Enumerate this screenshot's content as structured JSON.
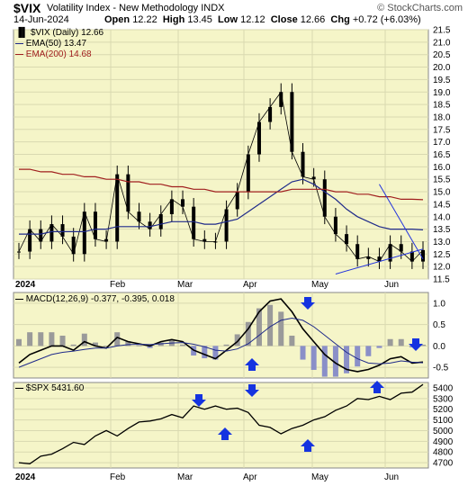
{
  "header": {
    "symbol": "$VIX",
    "name": "Volatility Index - New Methodology  INDX",
    "watermark": "© StockCharts.com",
    "date": "14-Jun-2024",
    "open_label": "Open",
    "open": "12.22",
    "high_label": "High",
    "high": "13.45",
    "low_label": "Low",
    "low": "12.12",
    "close_label": "Close",
    "close": "12.66",
    "chg_label": "Chg",
    "chg": "+0.72 (+6.03%)"
  },
  "colors": {
    "panel_bg": "#f5f5c8",
    "grid": "#d9d9b0",
    "price": "#000000",
    "ema50": "#1f2a8a",
    "ema200": "#a01e1e",
    "histogram": "#9a9a9a",
    "histogram_blue": "#8a8fc8",
    "arrow": "#1533e0",
    "trendline": "#2233dd"
  },
  "main_panel": {
    "legend": {
      "price": "$VIX (Daily) 12.66",
      "ema50": "EMA(50) 13.47",
      "ema200": "EMA(200) 14.68"
    },
    "year_label": "2024"
  },
  "macd_panel": {
    "legend_prefix": "MACD(12,26,9)",
    "legend_values": "-0.377, -0.395, 0.018"
  },
  "spx_panel": {
    "legend": "$SPX 5431.60"
  },
  "bottom_axis": {
    "year_label": "2024",
    "months": [
      "Feb",
      "Mar",
      "Apr",
      "May",
      "Jun"
    ]
  },
  "top_axis_months": [
    "Feb",
    "Mar",
    "Apr",
    "May",
    "Jun"
  ],
  "chart_data": [
    {
      "type": "line",
      "title": "$VIX (Daily) 12.66",
      "ylim": [
        11.5,
        21.5
      ],
      "y_ticks": [
        "21.5",
        "21.0",
        "20.5",
        "20.0",
        "19.5",
        "19.0",
        "18.5",
        "18.0",
        "17.5",
        "17.0",
        "16.5",
        "16.0",
        "15.5",
        "15.0",
        "14.5",
        "14.0",
        "13.5",
        "13.0",
        "12.5",
        "12.0",
        "11.5"
      ],
      "x": [
        "2024-01-02",
        "2024-01-05",
        "2024-01-10",
        "2024-01-15",
        "2024-01-20",
        "2024-01-25",
        "2024-01-31",
        "2024-02-05",
        "2024-02-10",
        "2024-02-13",
        "2024-02-18",
        "2024-02-23",
        "2024-02-28",
        "2024-03-05",
        "2024-03-10",
        "2024-03-15",
        "2024-03-20",
        "2024-03-25",
        "2024-03-30",
        "2024-04-04",
        "2024-04-09",
        "2024-04-12",
        "2024-04-15",
        "2024-04-17",
        "2024-04-19",
        "2024-04-22",
        "2024-04-25",
        "2024-04-30",
        "2024-05-03",
        "2024-05-08",
        "2024-05-13",
        "2024-05-18",
        "2024-05-23",
        "2024-05-28",
        "2024-05-31",
        "2024-06-05",
        "2024-06-10",
        "2024-06-14"
      ],
      "series": [
        {
          "name": "$VIX (Daily) 12.66",
          "values": [
            12.6,
            13.5,
            13.0,
            13.7,
            13.2,
            12.5,
            14.2,
            13.1,
            13.0,
            15.7,
            14.2,
            13.8,
            13.5,
            14.1,
            14.7,
            14.4,
            13.1,
            13.0,
            13.0,
            14.3,
            15.0,
            16.5,
            17.8,
            18.4,
            19.0,
            16.6,
            15.6,
            15.5,
            14.0,
            13.3,
            12.9,
            12.3,
            12.4,
            12.2,
            12.9,
            12.6,
            12.2,
            12.66
          ]
        },
        {
          "name": "EMA(50) 13.47",
          "values": [
            13.3,
            13.3,
            13.3,
            13.4,
            13.4,
            13.4,
            13.4,
            13.5,
            13.5,
            13.6,
            13.6,
            13.6,
            13.6,
            13.7,
            13.8,
            13.8,
            13.8,
            13.7,
            13.7,
            13.8,
            13.9,
            14.2,
            14.5,
            14.8,
            15.1,
            15.4,
            15.5,
            15.3,
            15.0,
            14.7,
            14.3,
            14.0,
            13.8,
            13.6,
            13.5,
            13.5,
            13.5,
            13.47
          ]
        },
        {
          "name": "EMA(200) 14.68",
          "values": [
            15.9,
            15.9,
            15.8,
            15.8,
            15.7,
            15.7,
            15.6,
            15.6,
            15.5,
            15.5,
            15.4,
            15.4,
            15.3,
            15.3,
            15.2,
            15.2,
            15.1,
            15.1,
            15.0,
            15.0,
            15.0,
            15.0,
            15.0,
            15.0,
            15.0,
            15.1,
            15.1,
            15.1,
            15.1,
            15.0,
            15.0,
            14.9,
            14.9,
            14.8,
            14.8,
            14.7,
            14.7,
            14.68
          ]
        }
      ],
      "annotations": [
        "rising support line from mid-May lows",
        "falling resistance line from late-May high"
      ]
    },
    {
      "type": "line",
      "title": "MACD(12,26,9) -0.377, -0.395, 0.018",
      "ylim": [
        -0.75,
        1.25
      ],
      "y_ticks": [
        "1.0",
        "0.5",
        "0.0",
        "-0.5"
      ],
      "series": [
        {
          "name": "MACD",
          "values": [
            -0.4,
            -0.2,
            -0.1,
            0.0,
            0.0,
            -0.1,
            0.1,
            0.0,
            -0.05,
            0.2,
            0.1,
            0.05,
            0.0,
            0.1,
            0.15,
            0.1,
            -0.1,
            -0.2,
            -0.3,
            -0.1,
            0.1,
            0.4,
            0.8,
            1.05,
            1.1,
            0.8,
            0.4,
            0.1,
            -0.2,
            -0.4,
            -0.55,
            -0.6,
            -0.55,
            -0.45,
            -0.3,
            -0.25,
            -0.4,
            -0.377
          ]
        },
        {
          "name": "Signal",
          "values": [
            -0.5,
            -0.4,
            -0.3,
            -0.2,
            -0.15,
            -0.12,
            -0.08,
            -0.05,
            -0.05,
            0.0,
            0.03,
            0.04,
            0.03,
            0.05,
            0.07,
            0.08,
            0.04,
            -0.02,
            -0.1,
            -0.12,
            -0.07,
            0.05,
            0.25,
            0.45,
            0.6,
            0.65,
            0.6,
            0.45,
            0.25,
            0.05,
            -0.15,
            -0.3,
            -0.4,
            -0.42,
            -0.4,
            -0.35,
            -0.38,
            -0.395
          ]
        }
      ],
      "annotations": [
        "down arrows at MACD peaks",
        "up arrows at MACD troughs"
      ]
    },
    {
      "type": "line",
      "title": "$SPX 5431.60",
      "ylim": [
        4650,
        5450
      ],
      "y_ticks": [
        "5400",
        "5300",
        "5200",
        "5100",
        "5000",
        "4900",
        "4800",
        "4700"
      ],
      "series": [
        {
          "name": "$SPX 5431.60",
          "values": [
            4700,
            4690,
            4760,
            4780,
            4830,
            4890,
            4870,
            4950,
            5000,
            4950,
            5020,
            5080,
            5090,
            5110,
            5150,
            5120,
            5230,
            5200,
            5230,
            5200,
            5210,
            5170,
            5050,
            5030,
            4970,
            5020,
            5050,
            5100,
            5130,
            5190,
            5230,
            5300,
            5290,
            5320,
            5290,
            5350,
            5360,
            5431.6
          ]
        }
      ],
      "annotations": [
        "down arrows at SPX pullback starts",
        "up arrows at SPX pullback lows"
      ]
    }
  ]
}
